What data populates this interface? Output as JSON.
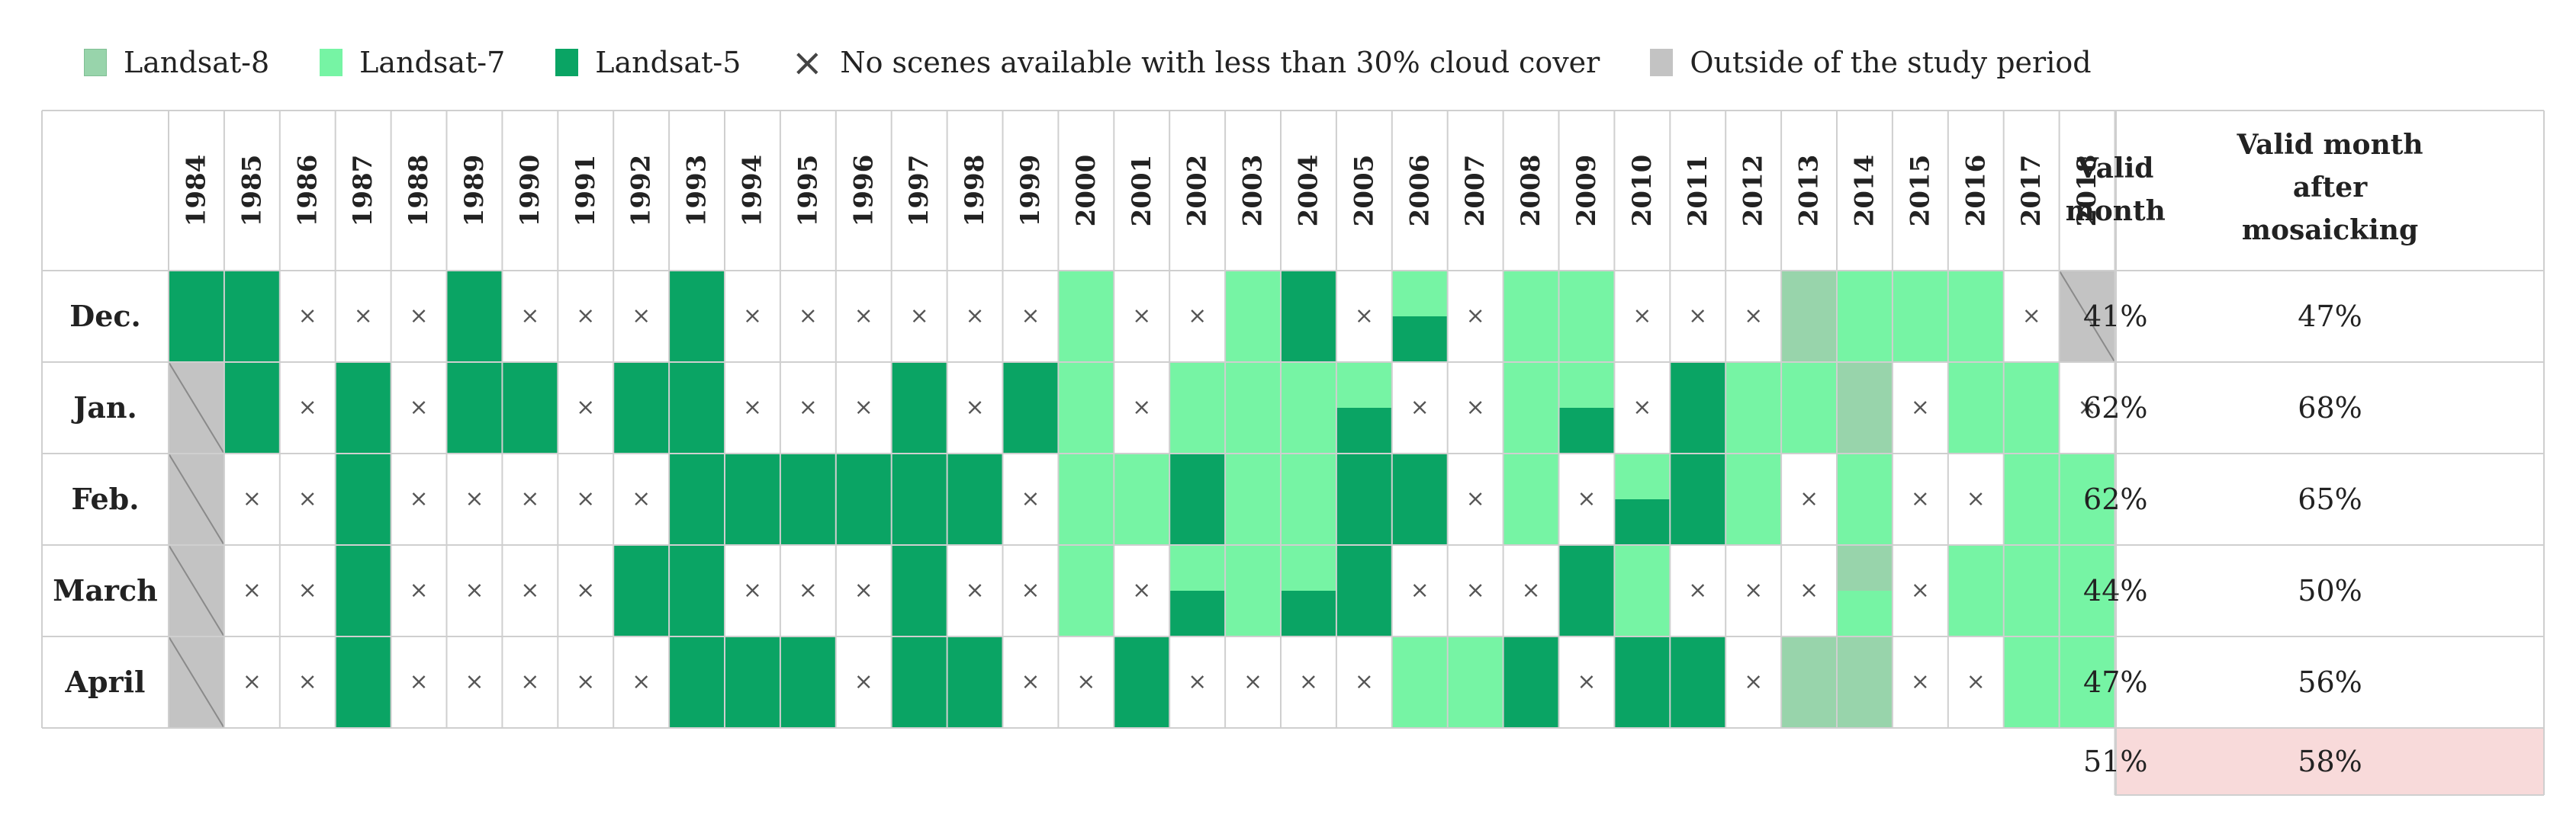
{
  "legend": {
    "landsat8": "Landsat-8",
    "landsat7": "Landsat-7",
    "landsat5": "Landsat-5",
    "no_scene": "No scenes available with less than 30% cloud cover",
    "outside": "Outside of the study period"
  },
  "colors": {
    "landsat8": "#98d4ab",
    "landsat7": "#76f4a4",
    "landsat5": "#0aa464",
    "outside": "#c3c3c3",
    "summary_bg": "#f8dada",
    "grid_line": "#cfcfcf"
  },
  "chart_data": {
    "type": "table",
    "cell_codes": {
      "5": "Landsat-5",
      "7": "Landsat-7",
      "8": "Landsat-8",
      "x": "No scenes available with less than 30% cloud cover",
      "o": "Outside of the study period",
      "A/B": "split cell, top half A and bottom half B"
    },
    "years": [
      "1984",
      "1985",
      "1986",
      "1987",
      "1988",
      "1989",
      "1990",
      "1991",
      "1992",
      "1993",
      "1994",
      "1995",
      "1996",
      "1997",
      "1998",
      "1999",
      "2000",
      "2001",
      "2002",
      "2003",
      "2004",
      "2005",
      "2006",
      "2007",
      "2008",
      "2009",
      "2010",
      "2011",
      "2012",
      "2013",
      "2014",
      "2015",
      "2016",
      "2017",
      "2018"
    ],
    "col_valid_month": "Valid month",
    "col_valid_after": "Valid month after mosaicking",
    "rows": [
      {
        "month": "Dec.",
        "cells": [
          "5",
          "5",
          "x",
          "x",
          "x",
          "5",
          "x",
          "x",
          "x",
          "5",
          "x",
          "x",
          "x",
          "x",
          "x",
          "x",
          "7",
          "x",
          "x",
          "7",
          "5",
          "x",
          "7/5",
          "x",
          "7",
          "7",
          "x",
          "x",
          "x",
          "8",
          "7",
          "7",
          "7",
          "x",
          "o"
        ],
        "valid": "41%",
        "valid_after": "47%"
      },
      {
        "month": "Jan.",
        "cells": [
          "o",
          "5",
          "x",
          "5",
          "x",
          "5",
          "5",
          "x",
          "5",
          "5",
          "x",
          "x",
          "x",
          "5",
          "x",
          "5",
          "7",
          "x",
          "7",
          "7",
          "7",
          "7/5",
          "x",
          "x",
          "7",
          "7/5",
          "x",
          "5",
          "7",
          "7",
          "8",
          "x",
          "7",
          "7",
          "x"
        ],
        "valid": "62%",
        "valid_after": "68%"
      },
      {
        "month": "Feb.",
        "cells": [
          "o",
          "x",
          "x",
          "5",
          "x",
          "x",
          "x",
          "x",
          "x",
          "5",
          "5",
          "5",
          "5",
          "5",
          "5",
          "x",
          "7",
          "7",
          "5",
          "7",
          "7",
          "5",
          "5",
          "x",
          "7",
          "x",
          "7/5",
          "5",
          "7",
          "x",
          "7",
          "x",
          "x",
          "7",
          "7"
        ],
        "valid": "62%",
        "valid_after": "65%"
      },
      {
        "month": "March",
        "cells": [
          "o",
          "x",
          "x",
          "5",
          "x",
          "x",
          "x",
          "x",
          "5",
          "5",
          "x",
          "x",
          "x",
          "5",
          "x",
          "x",
          "7",
          "x",
          "7/5",
          "7",
          "7/5",
          "5",
          "x",
          "x",
          "x",
          "5",
          "7",
          "x",
          "x",
          "x",
          "8/7",
          "x",
          "7",
          "7",
          "7"
        ],
        "valid": "44%",
        "valid_after": "50%"
      },
      {
        "month": "April",
        "cells": [
          "o",
          "x",
          "x",
          "5",
          "x",
          "x",
          "x",
          "x",
          "x",
          "5",
          "5",
          "5",
          "x",
          "5",
          "5",
          "x",
          "x",
          "5",
          "x",
          "x",
          "x",
          "x",
          "7",
          "7",
          "5",
          "x",
          "5",
          "5",
          "x",
          "8",
          "8",
          "x",
          "x",
          "7",
          "7"
        ],
        "valid": "47%",
        "valid_after": "56%"
      }
    ],
    "summary": {
      "valid": "51%",
      "valid_after": "58%"
    }
  }
}
